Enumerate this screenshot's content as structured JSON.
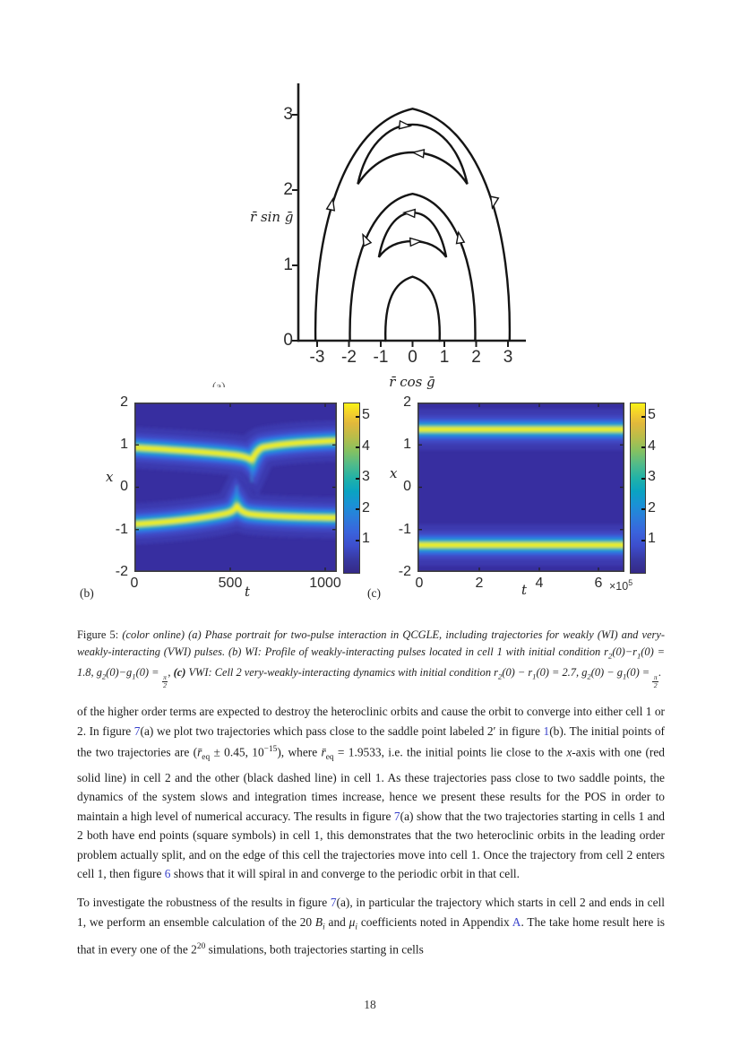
{
  "page": {
    "number": "18"
  },
  "colors": {
    "link": "#3a43cc",
    "curve": "#141414",
    "heatmap_bg": "#372ea0",
    "band_core": "#f2ef20",
    "parula_low": "#352a87",
    "parula_high": "#f9f316"
  },
  "figure": {
    "panel_a": {
      "label": "(a)",
      "xlabel": "r̄ cos ḡ",
      "ylabel": "r̄ sin ḡ",
      "x_ticks": [
        "-3",
        "-2",
        "-1",
        "0",
        "1",
        "2",
        "3"
      ],
      "y_ticks": [
        "0",
        "1",
        "2",
        "3"
      ]
    },
    "panel_b": {
      "label": "(b)",
      "xlabel": "t",
      "ylabel": "x",
      "x_ticks": [
        "0",
        "500",
        "1000"
      ],
      "y_ticks": [
        "2",
        "1",
        "0",
        "-1",
        "-2"
      ],
      "colorbar_ticks": [
        "5",
        "4",
        "3",
        "2",
        "1"
      ]
    },
    "panel_c": {
      "label": "(c)",
      "xlabel": "t",
      "ylabel": "x",
      "x_multiplier": "×10",
      "x_multiplier_exp": "5",
      "x_ticks": [
        "0",
        "2",
        "4",
        "6"
      ],
      "y_ticks": [
        "2",
        "1",
        "0",
        "-1",
        "-2"
      ],
      "colorbar_ticks": [
        "5",
        "4",
        "3",
        "2",
        "1"
      ]
    }
  },
  "caption": {
    "segments": [
      {
        "t": "Figure 5: ",
        "s": "up"
      },
      {
        "t": "(color online) (a) Phase portrait for two-pulse interaction in QCGLE, including trajectories for weakly (WI) and very-weakly-interacting (VWI) pulses. (b) WI: Profile of weakly-interacting pulses located in cell 1 with initial condition "
      },
      {
        "t": "r",
        "s": "v"
      },
      {
        "t": "2",
        "s": "sub"
      },
      {
        "t": "(0)−"
      },
      {
        "t": "r",
        "s": "v"
      },
      {
        "t": "1",
        "s": "sub"
      },
      {
        "t": "(0) = 1.8, "
      },
      {
        "t": "g",
        "s": "v"
      },
      {
        "t": "2",
        "s": "sub"
      },
      {
        "t": "(0)−"
      },
      {
        "t": "g",
        "s": "v"
      },
      {
        "t": "1",
        "s": "sub"
      },
      {
        "t": "(0) = "
      },
      {
        "s": "frac",
        "num": "π",
        "den": "2"
      },
      {
        "t": ", "
      },
      {
        "t": "(c)",
        "s": "b"
      },
      {
        "t": " VWI: Cell 2 very-weakly-interacting dynamics with initial condition "
      },
      {
        "t": "r",
        "s": "v"
      },
      {
        "t": "2",
        "s": "sub"
      },
      {
        "t": "(0) − "
      },
      {
        "t": "r",
        "s": "v"
      },
      {
        "t": "1",
        "s": "sub"
      },
      {
        "t": "(0) = 2.7, "
      },
      {
        "t": "g",
        "s": "v"
      },
      {
        "t": "2",
        "s": "sub"
      },
      {
        "t": "(0) − "
      },
      {
        "t": "g",
        "s": "v"
      },
      {
        "t": "1",
        "s": "sub"
      },
      {
        "t": "(0) = "
      },
      {
        "s": "frac",
        "num": "π",
        "den": "2"
      },
      {
        "t": "."
      }
    ]
  },
  "body": {
    "para1": {
      "segments": [
        {
          "t": "of the higher order terms are expected to destroy the heteroclinic orbits and cause the orbit to converge into either cell 1 or 2.  In figure "
        },
        {
          "t": "7",
          "s": "lnk"
        },
        {
          "t": "(a) we plot two trajectories which pass close to the saddle point labeled 2′ in figure "
        },
        {
          "t": "1",
          "s": "lnk"
        },
        {
          "t": "(b).  The initial points of the two trajectories are ("
        },
        {
          "t": "r̄",
          "s": "v"
        },
        {
          "t": "eq",
          "s": "sub"
        },
        {
          "t": " ± 0.45, 10"
        },
        {
          "t": "−15",
          "s": "sup"
        },
        {
          "t": "), where "
        },
        {
          "t": "r̄",
          "s": "v"
        },
        {
          "t": "eq",
          "s": "sub"
        },
        {
          "t": " = 1.9533, i.e.  the initial points lie close to the "
        },
        {
          "t": "x",
          "s": "v"
        },
        {
          "t": "-axis with one (red solid line) in cell 2 and the other (black dashed line) in cell 1.  As these trajectories pass close to two saddle points, the dynamics of the system slows and integration times increase, hence we present these results for the POS in order to maintain a high level of numerical accuracy.  The results in figure "
        },
        {
          "t": "7",
          "s": "lnk"
        },
        {
          "t": "(a) show that the two trajectories starting in cells 1 and 2 both have end points (square symbols) in cell 1, this demonstrates that the two heteroclinic orbits in the leading order problem actually split, and on the edge of this cell the trajectories move into cell 1.  Once the trajectory from cell 2 enters cell 1, then figure "
        },
        {
          "t": "6",
          "s": "lnk"
        },
        {
          "t": " shows that it will spiral in and converge to the periodic orbit in that cell."
        }
      ]
    },
    "para2": {
      "segments": [
        {
          "t": "To investigate the robustness of the results in figure "
        },
        {
          "t": "7",
          "s": "lnk"
        },
        {
          "t": "(a), in particular the trajectory which starts in cell 2 and ends in cell 1, we perform an ensemble calculation of the 20 "
        },
        {
          "t": "B",
          "s": "v"
        },
        {
          "t": "i",
          "s": "subv"
        },
        {
          "t": " and "
        },
        {
          "t": "μ",
          "s": "v"
        },
        {
          "t": "i",
          "s": "subv"
        },
        {
          "t": " coefficients noted in Appendix "
        },
        {
          "t": "A",
          "s": "lnk"
        },
        {
          "t": ". The take home result here is that in every one of the 2"
        },
        {
          "t": "20",
          "s": "sup"
        },
        {
          "t": " simulations, both trajectories starting in cells"
        }
      ]
    }
  },
  "chart_data": [
    {
      "type": "line",
      "panel": "a",
      "title": "Phase portrait for two-pulse interaction in QCGLE",
      "xlabel": "r̄ cos ḡ",
      "ylabel": "r̄ sin ḡ",
      "xlim": [
        -3.6,
        3.5
      ],
      "ylim": [
        0,
        3.4
      ],
      "x_ticks": [
        -3,
        -2,
        -1,
        0,
        1,
        2,
        3
      ],
      "y_ticks": [
        0,
        1,
        2,
        3
      ],
      "grid": false,
      "series": [
        {
          "name": "outer-heteroclinic-arch",
          "points": [
            [
              -3.05,
              0
            ],
            [
              -2.6,
              1.8
            ],
            [
              0,
              3.08
            ],
            [
              2.6,
              1.8
            ],
            [
              3.05,
              0
            ]
          ]
        },
        {
          "name": "upper-crescent-orbit",
          "points": [
            [
              -1.72,
              2.08
            ],
            [
              0,
              2.86
            ],
            [
              1.72,
              2.08
            ],
            [
              0,
              2.5
            ],
            [
              -1.72,
              2.08
            ]
          ]
        },
        {
          "name": "middle-arch",
          "points": [
            [
              -1.97,
              0
            ],
            [
              -1.32,
              1.45
            ],
            [
              0,
              1.95
            ],
            [
              1.32,
              1.45
            ],
            [
              1.97,
              0
            ]
          ]
        },
        {
          "name": "inner-crescent-orbit",
          "points": [
            [
              -1.06,
              1.11
            ],
            [
              0,
              1.7
            ],
            [
              1.06,
              1.11
            ],
            [
              0,
              1.32
            ],
            [
              -1.06,
              1.11
            ]
          ]
        },
        {
          "name": "small-arch",
          "points": [
            [
              -0.85,
              0
            ],
            [
              0,
              0.85
            ],
            [
              0.85,
              0
            ]
          ]
        }
      ]
    },
    {
      "type": "heatmap",
      "panel": "b",
      "title": "WI: weakly-interacting pulses in cell 1",
      "xlabel": "t",
      "ylabel": "x",
      "xlim": [
        0,
        1060
      ],
      "ylim": [
        -2,
        2
      ],
      "colorbar_range": [
        0,
        5.5
      ],
      "peak_value": 5.5,
      "pulse_centers": {
        "top": [
          [
            0,
            0.95
          ],
          [
            300,
            0.82
          ],
          [
            500,
            0.72
          ],
          [
            560,
            0.62
          ],
          [
            650,
            0.95
          ],
          [
            1060,
            1.1
          ]
        ],
        "bottom": [
          [
            0,
            -0.95
          ],
          [
            300,
            -0.78
          ],
          [
            500,
            -0.62
          ],
          [
            545,
            -0.48
          ],
          [
            650,
            -0.7
          ],
          [
            1060,
            -0.73
          ]
        ]
      }
    },
    {
      "type": "heatmap",
      "panel": "c",
      "title": "VWI: very-weakly-interacting dynamics in cell 2",
      "xlabel": "t",
      "ylabel": "x",
      "xlim": [
        0,
        690000
      ],
      "ylim": [
        -2,
        2
      ],
      "colorbar_range": [
        0,
        5.5
      ],
      "peak_value": 5.5,
      "pulse_centers": {
        "top": [
          [
            0,
            1.37
          ],
          [
            690000,
            1.37
          ]
        ],
        "bottom": [
          [
            0,
            -1.37
          ],
          [
            690000,
            -1.37
          ]
        ]
      }
    }
  ]
}
